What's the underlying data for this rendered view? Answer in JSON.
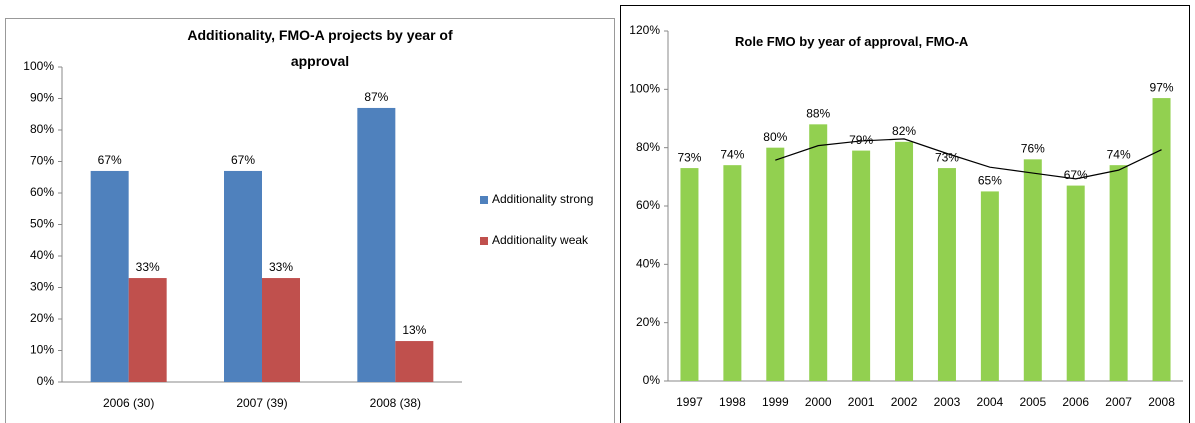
{
  "chart_data": [
    {
      "type": "bar",
      "title": "Additionality, FMO-A projects by year of approval",
      "categories": [
        "2006 (30)",
        "2007 (39)",
        "2008 (38)"
      ],
      "series": [
        {
          "name": "Additionality strong",
          "color": "#4f81bd",
          "values": [
            67,
            67,
            87
          ],
          "value_labels": [
            "67%",
            "67%",
            "87%"
          ]
        },
        {
          "name": "Additionality weak",
          "color": "#c0504d",
          "values": [
            33,
            33,
            13
          ],
          "value_labels": [
            "33%",
            "33%",
            "13%"
          ]
        }
      ],
      "ylim": [
        0,
        100
      ],
      "yticks": [
        {
          "value": 0,
          "label": "0%"
        },
        {
          "value": 10,
          "label": "10%"
        },
        {
          "value": 20,
          "label": "20%"
        },
        {
          "value": 30,
          "label": "30%"
        },
        {
          "value": 40,
          "label": "40%"
        },
        {
          "value": 50,
          "label": "50%"
        },
        {
          "value": 60,
          "label": "60%"
        },
        {
          "value": 70,
          "label": "70%"
        },
        {
          "value": 80,
          "label": "80%"
        },
        {
          "value": 90,
          "label": "90%"
        },
        {
          "value": 100,
          "label": "100%"
        }
      ],
      "legend": "right",
      "grid": false
    },
    {
      "type": "bar",
      "title": "Role FMO by year of approval, FMO-A",
      "categories": [
        "1997",
        "1998",
        "1999",
        "2000",
        "2001",
        "2002",
        "2003",
        "2004",
        "2005",
        "2006",
        "2007",
        "2008"
      ],
      "series": [
        {
          "color": "#92d050",
          "values": [
            73,
            74,
            80,
            88,
            79,
            82,
            73,
            65,
            76,
            67,
            74,
            97
          ],
          "value_labels": [
            "73%",
            "74%",
            "80%",
            "88%",
            "79%",
            "82%",
            "73%",
            "65%",
            "76%",
            "67%",
            "74%",
            "97%"
          ]
        }
      ],
      "trend_line": {
        "color": "#000000",
        "values": [
          null,
          null,
          75.7,
          80.7,
          82.3,
          83,
          78,
          73.3,
          71.3,
          69.3,
          72.3,
          79.3
        ]
      },
      "ylim": [
        0,
        120
      ],
      "yticks": [
        {
          "value": 0,
          "label": "0%"
        },
        {
          "value": 20,
          "label": "20%"
        },
        {
          "value": 40,
          "label": "40%"
        },
        {
          "value": 60,
          "label": "60%"
        },
        {
          "value": 80,
          "label": "80%"
        },
        {
          "value": 100,
          "label": "100%"
        },
        {
          "value": 120,
          "label": "120%"
        }
      ],
      "grid": false
    }
  ]
}
